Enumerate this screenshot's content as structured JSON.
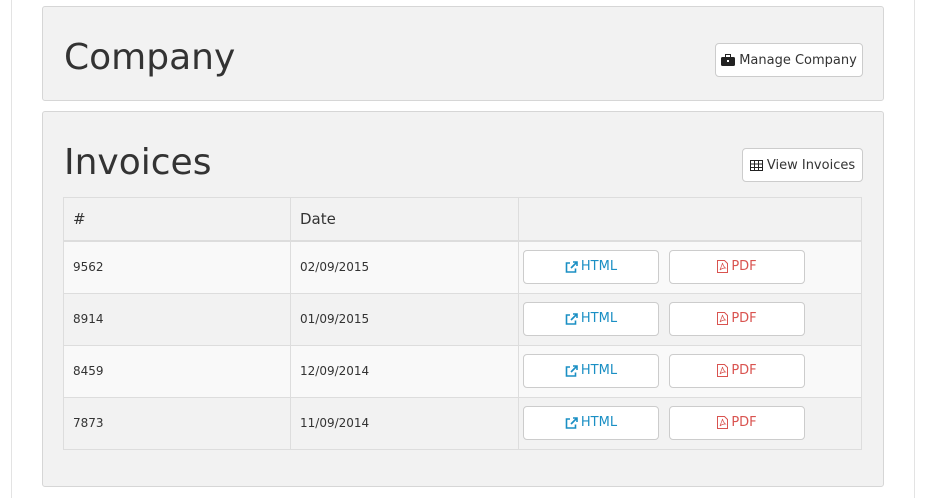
{
  "company": {
    "title": "Company",
    "manage_label": "Manage Company"
  },
  "invoices": {
    "title": "Invoices",
    "view_label": "View Invoices",
    "columns": [
      "#",
      "Date",
      ""
    ],
    "rows": [
      {
        "number": "9562",
        "date": "02/09/2015",
        "html": "HTML",
        "pdf": "PDF"
      },
      {
        "number": "8914",
        "date": "01/09/2015",
        "html": "HTML",
        "pdf": "PDF"
      },
      {
        "number": "8459",
        "date": "12/09/2014",
        "html": "HTML",
        "pdf": "PDF"
      },
      {
        "number": "7873",
        "date": "11/09/2014",
        "html": "HTML",
        "pdf": "PDF"
      }
    ]
  },
  "colors": {
    "html_link": "#1a8fc4",
    "pdf_link": "#d9534f",
    "panel": "#f2f2f2"
  }
}
